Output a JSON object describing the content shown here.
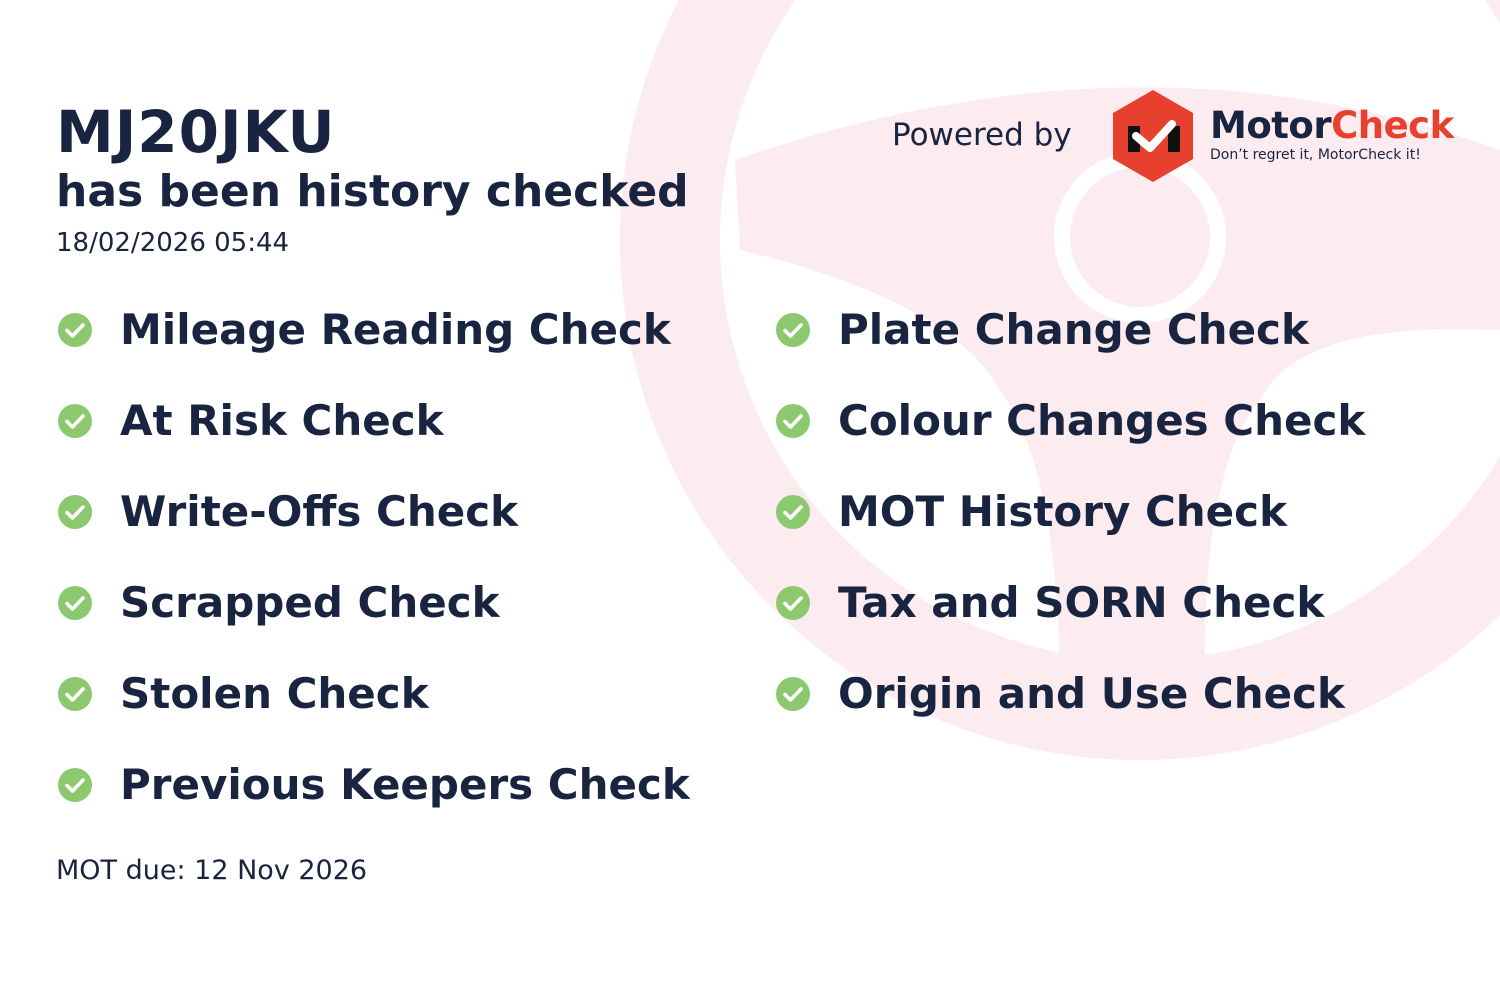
{
  "header": {
    "plate": "MJ20JKU",
    "subtitle": "has been history checked",
    "timestamp": "18/02/2026 05:44"
  },
  "branding": {
    "powered_by": "Powered by",
    "brand_part1": "Motor",
    "brand_part2": "Check",
    "tagline": "Don’t regret it, MotorCheck it!",
    "brand_color": "#e8402f"
  },
  "checks_left": [
    {
      "label": "Mileage Reading Check",
      "icon": "check-circle-icon"
    },
    {
      "label": "At Risk Check",
      "icon": "check-circle-icon"
    },
    {
      "label": "Write-Offs Check",
      "icon": "check-circle-icon"
    },
    {
      "label": "Scrapped Check",
      "icon": "check-circle-icon"
    },
    {
      "label": "Stolen Check",
      "icon": "check-circle-icon"
    },
    {
      "label": "Previous Keepers Check",
      "icon": "check-circle-icon"
    }
  ],
  "checks_right": [
    {
      "label": "Plate Change Check",
      "icon": "check-circle-icon"
    },
    {
      "label": "Colour Changes Check",
      "icon": "check-circle-icon"
    },
    {
      "label": "MOT History Check",
      "icon": "check-circle-icon"
    },
    {
      "label": "Tax and SORN Check",
      "icon": "check-circle-icon"
    },
    {
      "label": "Origin and Use Check",
      "icon": "check-circle-icon"
    }
  ],
  "footer": {
    "mot_due": "MOT due: 12 Nov 2026"
  },
  "colors": {
    "text": "#182440",
    "check_green": "#8cc96e",
    "background_wheel": "#fcebef"
  }
}
